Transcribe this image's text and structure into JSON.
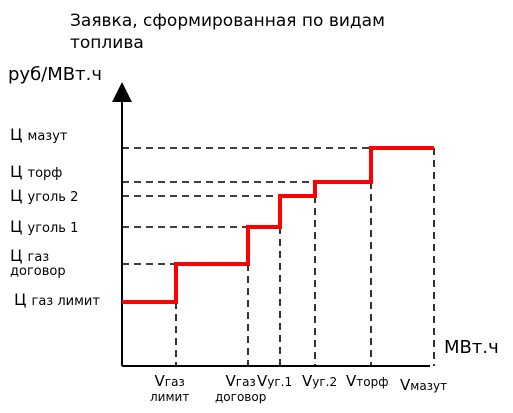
{
  "title_line1": "Заявка, сформированная по видам",
  "title_line2": "топлива",
  "y_axis_label": "руб/МВт.ч",
  "x_axis_label": "МВт.ч",
  "colors": {
    "step": "#ff0000",
    "axis": "#000000",
    "guides": "#000000"
  },
  "y_labels": {
    "mazut": {
      "big": "Ц",
      "small": "мазут"
    },
    "torf": {
      "big": "Ц",
      "small": "торф"
    },
    "ugol2": {
      "big": "Ц",
      "small": "уголь 2"
    },
    "ugol1": {
      "big": "Ц",
      "small": "уголь 1"
    },
    "gaz_dog": {
      "big": "Ц",
      "small": "газ",
      "small2": "договор"
    },
    "gaz_lim": {
      "big": "Ц",
      "small": "газ лимит"
    }
  },
  "x_labels": {
    "gaz_lim": {
      "big": "V",
      "small": "газ",
      "small2": "лимит"
    },
    "gaz_dog": {
      "big": "V",
      "small": "газ",
      "small2": "договор"
    },
    "ug1": {
      "big": "V",
      "small": "уг.1"
    },
    "ug2": {
      "big": "V",
      "small": "уг.2"
    },
    "torf": {
      "big": "V",
      "small": "торф"
    },
    "mazut": {
      "big": "V",
      "small": "мазут"
    }
  }
}
